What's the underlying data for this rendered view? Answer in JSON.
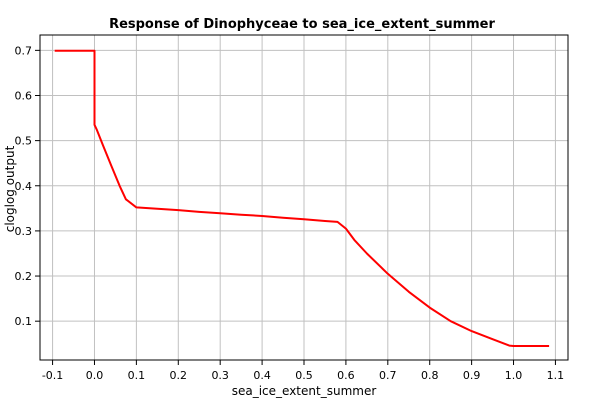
{
  "chart_data": {
    "type": "line",
    "title": "Response of Dinophyceae to sea_ice_extent_summer",
    "xlabel": "sea_ice_extent_summer",
    "ylabel": "cloglog output",
    "xlim": [
      -0.13,
      1.13
    ],
    "ylim": [
      0.014,
      0.734
    ],
    "x_ticks": [
      "-0.1",
      "0.0",
      "0.1",
      "0.2",
      "0.3",
      "0.4",
      "0.5",
      "0.6",
      "0.7",
      "0.8",
      "0.9",
      "1.0",
      "1.1"
    ],
    "y_ticks": [
      "0.1",
      "0.2",
      "0.3",
      "0.4",
      "0.5",
      "0.6",
      "0.7"
    ],
    "grid": true,
    "series": [
      {
        "color": "#ff0000",
        "x": [
          -0.095,
          -0.05,
          0.0,
          0.0,
          0.005,
          0.02,
          0.04,
          0.06,
          0.075,
          0.1,
          0.15,
          0.2,
          0.25,
          0.3,
          0.35,
          0.4,
          0.45,
          0.5,
          0.55,
          0.58,
          0.6,
          0.62,
          0.65,
          0.7,
          0.75,
          0.8,
          0.85,
          0.9,
          0.95,
          0.99,
          1.0,
          1.05,
          1.085
        ],
        "y": [
          0.699,
          0.699,
          0.699,
          0.535,
          0.525,
          0.49,
          0.445,
          0.4,
          0.37,
          0.352,
          0.349,
          0.346,
          0.342,
          0.339,
          0.336,
          0.333,
          0.329,
          0.326,
          0.322,
          0.32,
          0.305,
          0.28,
          0.25,
          0.205,
          0.165,
          0.13,
          0.1,
          0.078,
          0.06,
          0.046,
          0.045,
          0.045,
          0.045
        ]
      }
    ]
  }
}
